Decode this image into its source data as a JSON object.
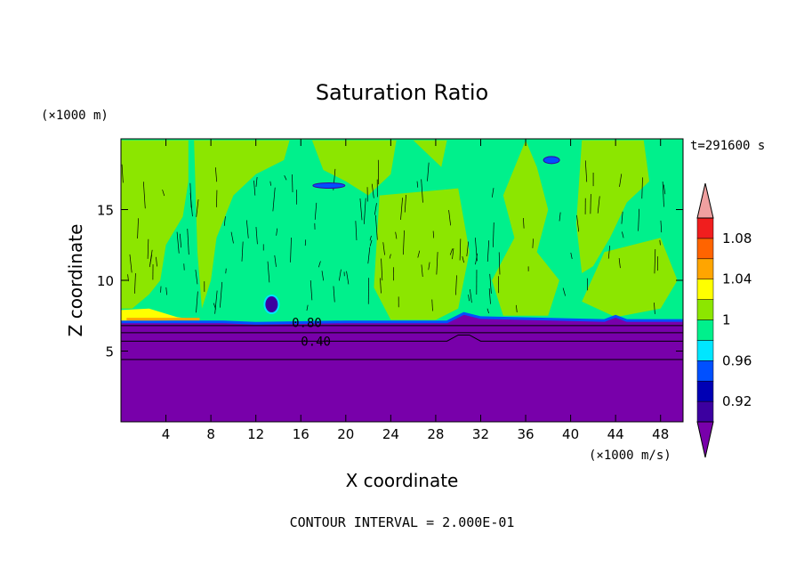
{
  "chart_data": {
    "type": "heatmap",
    "title": "Saturation Ratio",
    "xlabel": "X coordinate",
    "ylabel": "Z coordinate",
    "x_unit": "(×1000 m/s)",
    "y_unit": "(×1000 m)",
    "time_label": "t=291600 s",
    "footer": "CONTOUR INTERVAL = 2.000E-01",
    "xlim": [
      0,
      50
    ],
    "ylim": [
      0,
      20
    ],
    "xticks": [
      4,
      8,
      12,
      16,
      20,
      24,
      28,
      32,
      36,
      40,
      44,
      48
    ],
    "yticks": [
      5,
      10,
      15
    ],
    "contour_labels": [
      {
        "text": "0.80",
        "x": 15.2,
        "y": 7.0
      },
      {
        "text": "0.40",
        "x": 16.0,
        "y": 5.7
      }
    ],
    "colorbar": {
      "levels": [
        0.9,
        0.92,
        0.94,
        0.96,
        0.98,
        1.0,
        1.02,
        1.04,
        1.06,
        1.08,
        1.1
      ],
      "labels": [
        "0.92",
        "0.96",
        "1",
        "1.04",
        "1.08"
      ],
      "colors": [
        "#3c00a0",
        "#0000b4",
        "#0050ff",
        "#00e6ff",
        "#00f08c",
        "#8ce600",
        "#ffff00",
        "#ffa500",
        "#ff6400",
        "#f01e1e"
      ],
      "under_color": "#7800aa",
      "over_color": "#f0a0a0"
    },
    "regions": {
      "dry_layer_top": 7.0,
      "cloud_base_color": "#00f08c",
      "patch_color": "#8ce600",
      "dry_color": "#7800aa"
    }
  }
}
